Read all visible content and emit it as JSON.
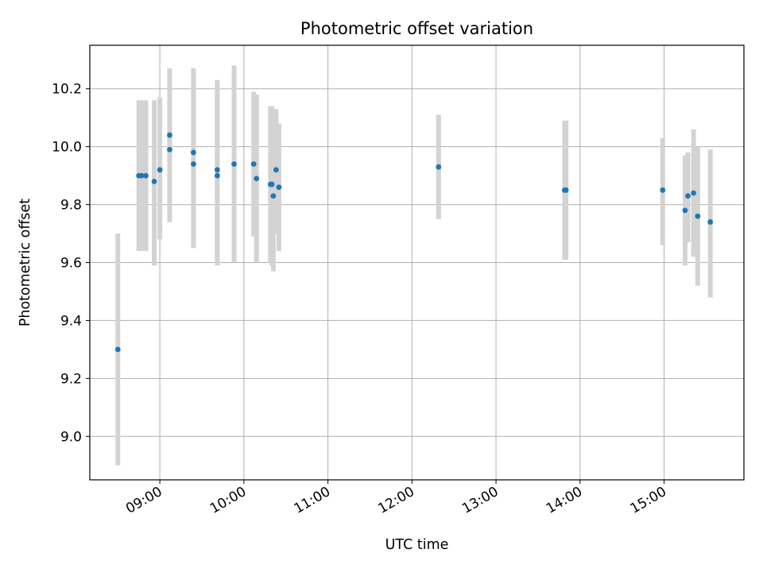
{
  "chart_data": {
    "type": "scatter",
    "title": "Photometric offset variation",
    "xlabel": "UTC time",
    "ylabel": "Photometric offset",
    "x_ticks": [
      "09:00",
      "10:00",
      "11:00",
      "12:00",
      "13:00",
      "14:00",
      "15:00"
    ],
    "y_ticks": [
      "9.0",
      "9.2",
      "9.4",
      "9.6",
      "9.8",
      "10.0",
      "10.2"
    ],
    "xlim": [
      "08:10",
      "15:57"
    ],
    "ylim": [
      8.85,
      10.35
    ],
    "grid": true,
    "errorbar_color": "#d3d3d3",
    "marker_color": "#1f77b4",
    "points": [
      {
        "x": "08:30",
        "y": 9.3,
        "ylo": 8.9,
        "yhi": 9.7
      },
      {
        "x": "08:45",
        "y": 9.9,
        "ylo": 9.64,
        "yhi": 10.16
      },
      {
        "x": "08:47",
        "y": 9.9,
        "ylo": 9.64,
        "yhi": 10.16
      },
      {
        "x": "08:50",
        "y": 9.9,
        "ylo": 9.64,
        "yhi": 10.16
      },
      {
        "x": "08:56",
        "y": 9.88,
        "ylo": 9.59,
        "yhi": 10.16
      },
      {
        "x": "09:00",
        "y": 9.92,
        "ylo": 9.68,
        "yhi": 10.17
      },
      {
        "x": "09:07",
        "y": 10.04,
        "ylo": 9.84,
        "yhi": 10.27
      },
      {
        "x": "09:07",
        "y": 9.99,
        "ylo": 9.74,
        "yhi": 10.24
      },
      {
        "x": "09:24",
        "y": 9.98,
        "ylo": 9.69,
        "yhi": 10.27
      },
      {
        "x": "09:24",
        "y": 9.94,
        "ylo": 9.65,
        "yhi": 10.23
      },
      {
        "x": "09:41",
        "y": 9.92,
        "ylo": 9.6,
        "yhi": 10.23
      },
      {
        "x": "09:41",
        "y": 9.9,
        "ylo": 9.59,
        "yhi": 10.21
      },
      {
        "x": "09:53",
        "y": 9.94,
        "ylo": 9.6,
        "yhi": 10.28
      },
      {
        "x": "10:07",
        "y": 9.94,
        "ylo": 9.69,
        "yhi": 10.19
      },
      {
        "x": "10:09",
        "y": 9.89,
        "ylo": 9.6,
        "yhi": 10.18
      },
      {
        "x": "10:19",
        "y": 9.87,
        "ylo": 9.6,
        "yhi": 10.14
      },
      {
        "x": "10:20",
        "y": 9.87,
        "ylo": 9.59,
        "yhi": 10.14
      },
      {
        "x": "10:21",
        "y": 9.83,
        "ylo": 9.57,
        "yhi": 10.1
      },
      {
        "x": "10:23",
        "y": 9.92,
        "ylo": 9.7,
        "yhi": 10.13
      },
      {
        "x": "10:25",
        "y": 9.86,
        "ylo": 9.64,
        "yhi": 10.08
      },
      {
        "x": "12:19",
        "y": 9.93,
        "ylo": 9.75,
        "yhi": 10.11
      },
      {
        "x": "13:49",
        "y": 9.85,
        "ylo": 9.61,
        "yhi": 10.09
      },
      {
        "x": "13:50",
        "y": 9.85,
        "ylo": 9.61,
        "yhi": 10.09
      },
      {
        "x": "14:59",
        "y": 9.85,
        "ylo": 9.66,
        "yhi": 10.03
      },
      {
        "x": "15:15",
        "y": 9.78,
        "ylo": 9.59,
        "yhi": 9.97
      },
      {
        "x": "15:17",
        "y": 9.83,
        "ylo": 9.67,
        "yhi": 9.98
      },
      {
        "x": "15:21",
        "y": 9.84,
        "ylo": 9.62,
        "yhi": 10.06
      },
      {
        "x": "15:24",
        "y": 9.76,
        "ylo": 9.52,
        "yhi": 10.0
      },
      {
        "x": "15:33",
        "y": 9.74,
        "ylo": 9.48,
        "yhi": 9.99
      }
    ]
  }
}
